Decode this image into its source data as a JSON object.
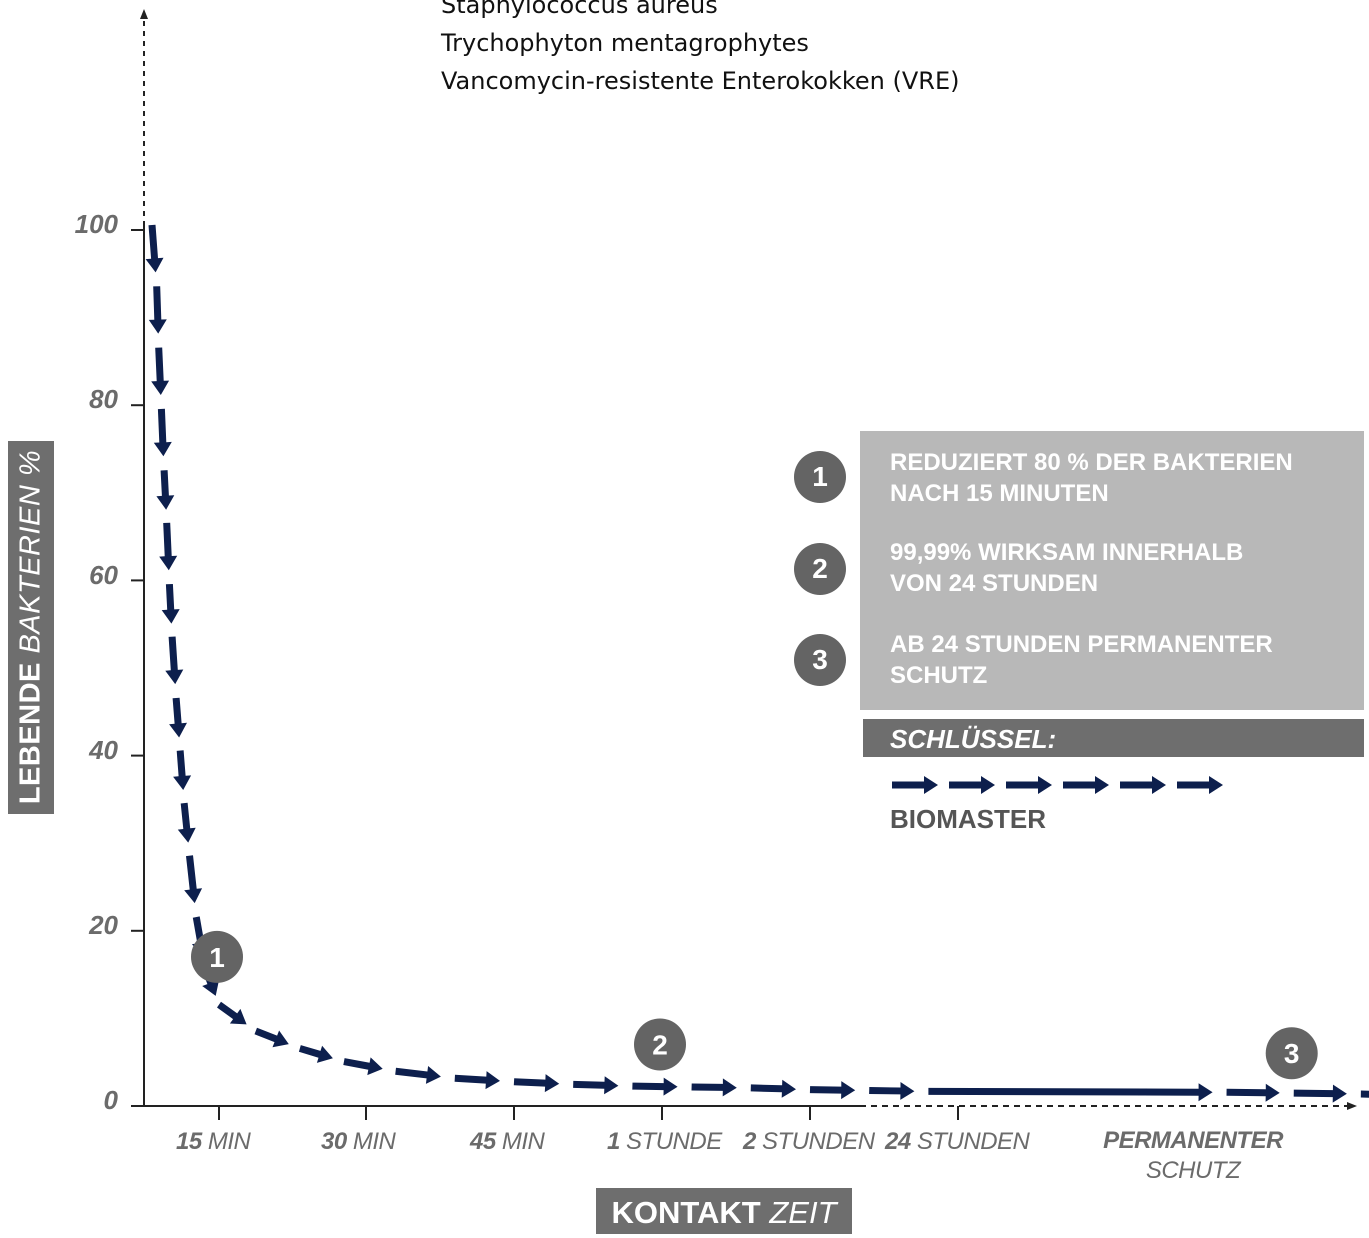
{
  "organisms": [
    "Staphylococcus aureus",
    "Trychophyton mentagrophytes",
    "Vancomycin-resistente Enterokokken (VRE)"
  ],
  "colors": {
    "arrow": "#0d1f4d",
    "gray_box": "#6e6e6e",
    "legend_bg": "#b8b8b8",
    "badge": "#646464",
    "tick_text": "#6b6b6b"
  },
  "y_axis": {
    "label_bold": "LEBENDE",
    "label_italic": "BAKTERIEN %",
    "ticks": [
      "100",
      "80",
      "60",
      "40",
      "20",
      "0"
    ]
  },
  "x_axis": {
    "label_bold": "KONTAKT",
    "label_italic": "ZEIT",
    "ticks": [
      {
        "bold": "15",
        "italic": " MIN"
      },
      {
        "bold": "30",
        "italic": " MIN"
      },
      {
        "bold": "45",
        "italic": " MIN"
      },
      {
        "bold": "1",
        "italic": " STUNDE"
      },
      {
        "bold": "2",
        "italic": " STUNDEN"
      },
      {
        "bold": "24",
        "italic": " STUNDEN"
      }
    ],
    "last_tick": {
      "line1": "PERMANENTER",
      "line2": "SCHUTZ"
    }
  },
  "legend": {
    "items": [
      {
        "num": "1",
        "line1": "REDUZIERT 80 % DER BAKTERIEN",
        "line2": "NACH 15 MINUTEN"
      },
      {
        "num": "2",
        "line1": "99,99% WIRKSAM INNERHALB",
        "line2": "VON 24 STUNDEN"
      },
      {
        "num": "3",
        "line1": "AB 24 STUNDEN PERMANENTER",
        "line2": "SCHUTZ"
      }
    ],
    "key_title": "SCHLÜSSEL:",
    "series_name": "BIOMASTER"
  },
  "chart_data": {
    "type": "line",
    "xlabel": "KONTAKT ZEIT",
    "ylabel": "LEBENDE BAKTERIEN %",
    "ylim": [
      0,
      100
    ],
    "categories": [
      "15 MIN",
      "30 MIN",
      "45 MIN",
      "1 STUNDE",
      "2 STUNDEN",
      "24 STUNDEN",
      "PERMANENTER SCHUTZ"
    ],
    "grid": false,
    "legend_position": "right",
    "series": [
      {
        "name": "BIOMASTER",
        "points": [
          [
            0.0,
            100
          ],
          [
            0.07,
            93
          ],
          [
            0.1,
            86
          ],
          [
            0.14,
            79
          ],
          [
            0.18,
            72
          ],
          [
            0.22,
            66
          ],
          [
            0.26,
            59
          ],
          [
            0.3,
            53
          ],
          [
            0.36,
            46
          ],
          [
            0.42,
            40
          ],
          [
            0.48,
            34
          ],
          [
            0.56,
            28
          ],
          [
            0.66,
            21
          ],
          [
            0.8,
            15
          ],
          [
            1.0,
            11
          ],
          [
            1.25,
            8
          ],
          [
            1.55,
            6
          ],
          [
            1.85,
            4.5
          ],
          [
            2.2,
            3.4
          ],
          [
            2.6,
            2.6
          ],
          [
            3.0,
            2.2
          ],
          [
            3.4,
            1.9
          ],
          [
            3.8,
            1.7
          ],
          [
            4.2,
            1.6
          ],
          [
            4.6,
            1.5
          ],
          [
            5.0,
            1.3
          ],
          [
            5.4,
            1.2
          ],
          [
            5.8,
            1.1
          ],
          [
            6.2,
            1.0
          ],
          [
            6.6,
            0.9
          ],
          [
            7.0,
            0.8
          ],
          [
            7.4,
            0.6
          ]
        ]
      }
    ],
    "annotations": [
      {
        "label": "1",
        "x": 1.0,
        "y": 16
      },
      {
        "label": "2",
        "x": 4.0,
        "y": 6
      },
      {
        "label": "3",
        "x": 6.6,
        "y": 5
      }
    ]
  }
}
